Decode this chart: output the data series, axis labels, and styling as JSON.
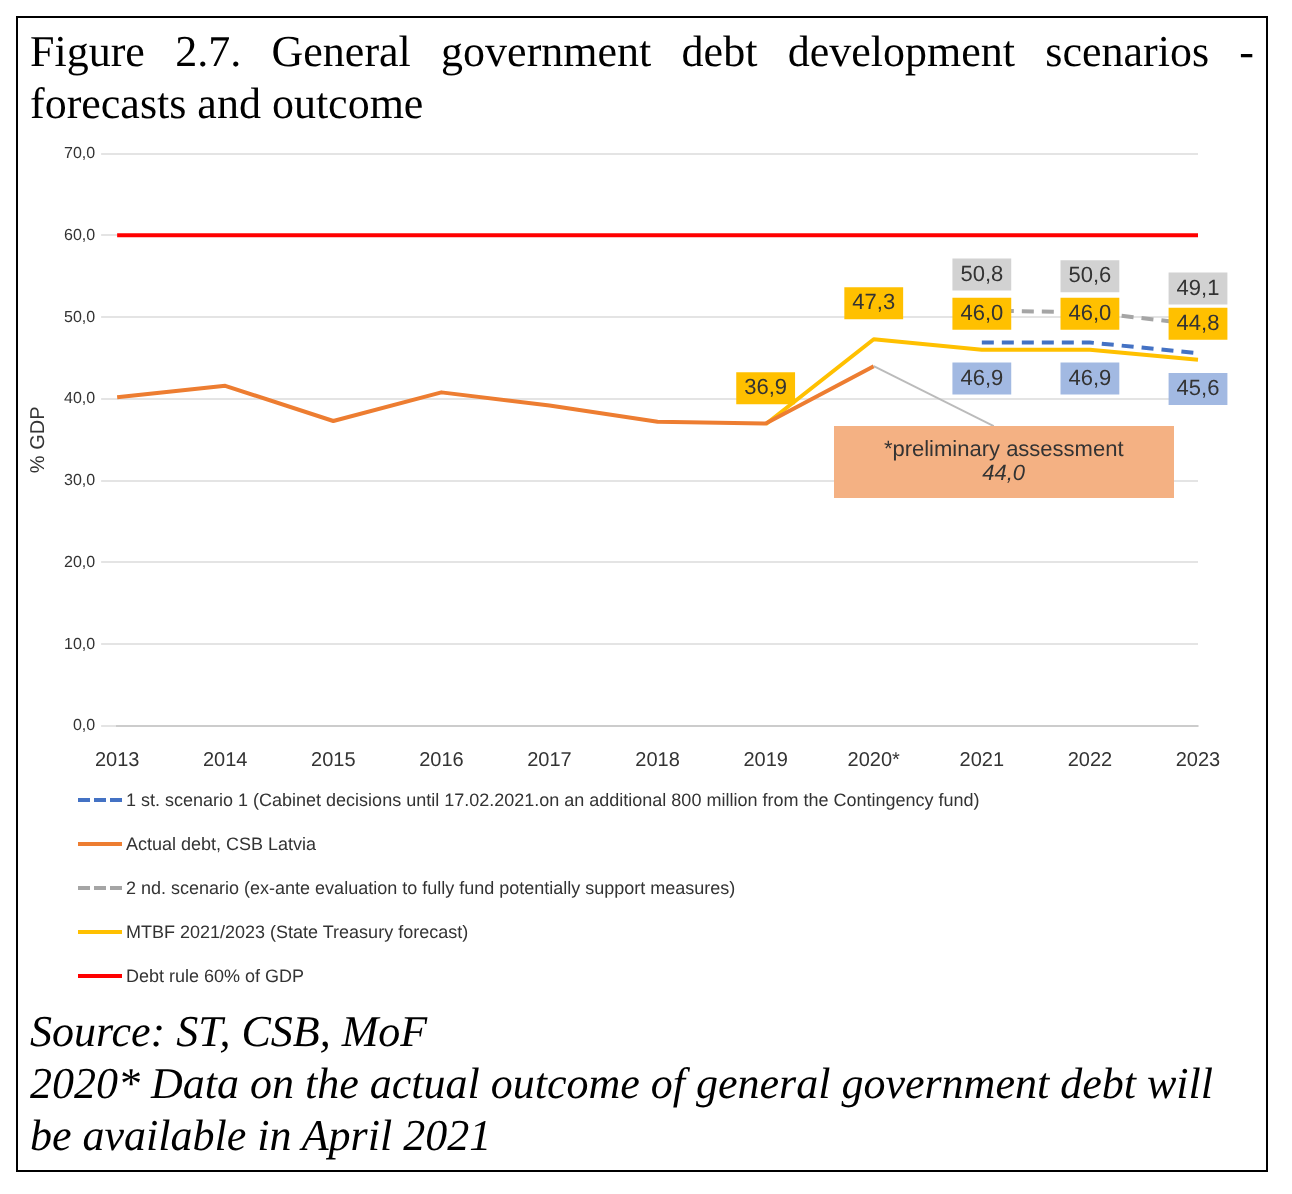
{
  "chart_data": {
    "type": "line",
    "title": "Figure 2.7. General government debt development scenarios - forecasts and outcome",
    "ylabel": "% GDP",
    "categories": [
      "2013",
      "2014",
      "2015",
      "2016",
      "2017",
      "2018",
      "2019",
      "2020*",
      "2021",
      "2022",
      "2023"
    ],
    "series": [
      {
        "name": "1 st. scenario 1 (Cabinet decisions until 17.02.2021.on an additional 800 million from the Contingency fund)",
        "color": "#4472c4",
        "line_style": "dashed",
        "values": [
          null,
          null,
          null,
          null,
          null,
          null,
          null,
          null,
          46.9,
          46.9,
          45.6
        ],
        "value_labels": [
          null,
          null,
          null,
          null,
          null,
          null,
          null,
          null,
          "46,9",
          "46,9",
          "45,6"
        ]
      },
      {
        "name": "Actual debt, CSB Latvia",
        "color": "#ed7d31",
        "values": [
          40.2,
          41.6,
          37.3,
          40.8,
          39.2,
          37.2,
          37.0,
          44.0,
          null,
          null,
          null
        ]
      },
      {
        "name": "2 nd. scenario (ex-ante evaluation to fully fund potentially support measures)",
        "color": "#a5a5a5",
        "line_style": "dashed",
        "values": [
          null,
          null,
          null,
          null,
          null,
          null,
          null,
          null,
          50.8,
          50.6,
          49.1
        ],
        "value_labels": [
          null,
          null,
          null,
          null,
          null,
          null,
          null,
          null,
          "50,8",
          "50,6",
          "49,1"
        ]
      },
      {
        "name": "MTBF 2021/2023 (State Treasury forecast)",
        "color": "#ffc000",
        "values": [
          null,
          null,
          null,
          null,
          null,
          null,
          36.9,
          47.3,
          46.0,
          46.0,
          44.8
        ],
        "value_labels": [
          null,
          null,
          null,
          null,
          null,
          null,
          "36,9",
          "47,3",
          "46,0",
          "46,0",
          "44,8"
        ]
      },
      {
        "name": "Debt rule 60% of GDP",
        "color": "#ff0000",
        "values": [
          60,
          60,
          60,
          60,
          60,
          60,
          60,
          60,
          60,
          60,
          60
        ]
      }
    ],
    "ylim": [
      0,
      70
    ],
    "yticks": [
      {
        "value": 0,
        "label": "0,0"
      },
      {
        "value": 10,
        "label": "10,0"
      },
      {
        "value": 20,
        "label": "20,0"
      },
      {
        "value": 30,
        "label": "30,0"
      },
      {
        "value": 40,
        "label": "40,0"
      },
      {
        "value": 50,
        "label": "50,0"
      },
      {
        "value": 60,
        "label": "60,0"
      },
      {
        "value": 70,
        "label": "70,0"
      }
    ],
    "grid": "y",
    "legend": "bottom",
    "annotations": [
      {
        "text": "*preliminary assessment\n44,0",
        "x": "2020*",
        "y": 44.0
      },
      "Source: ST, CSB, MoF",
      "2020* Data on the actual outcome of general government debt will be available in April 2021"
    ]
  }
}
